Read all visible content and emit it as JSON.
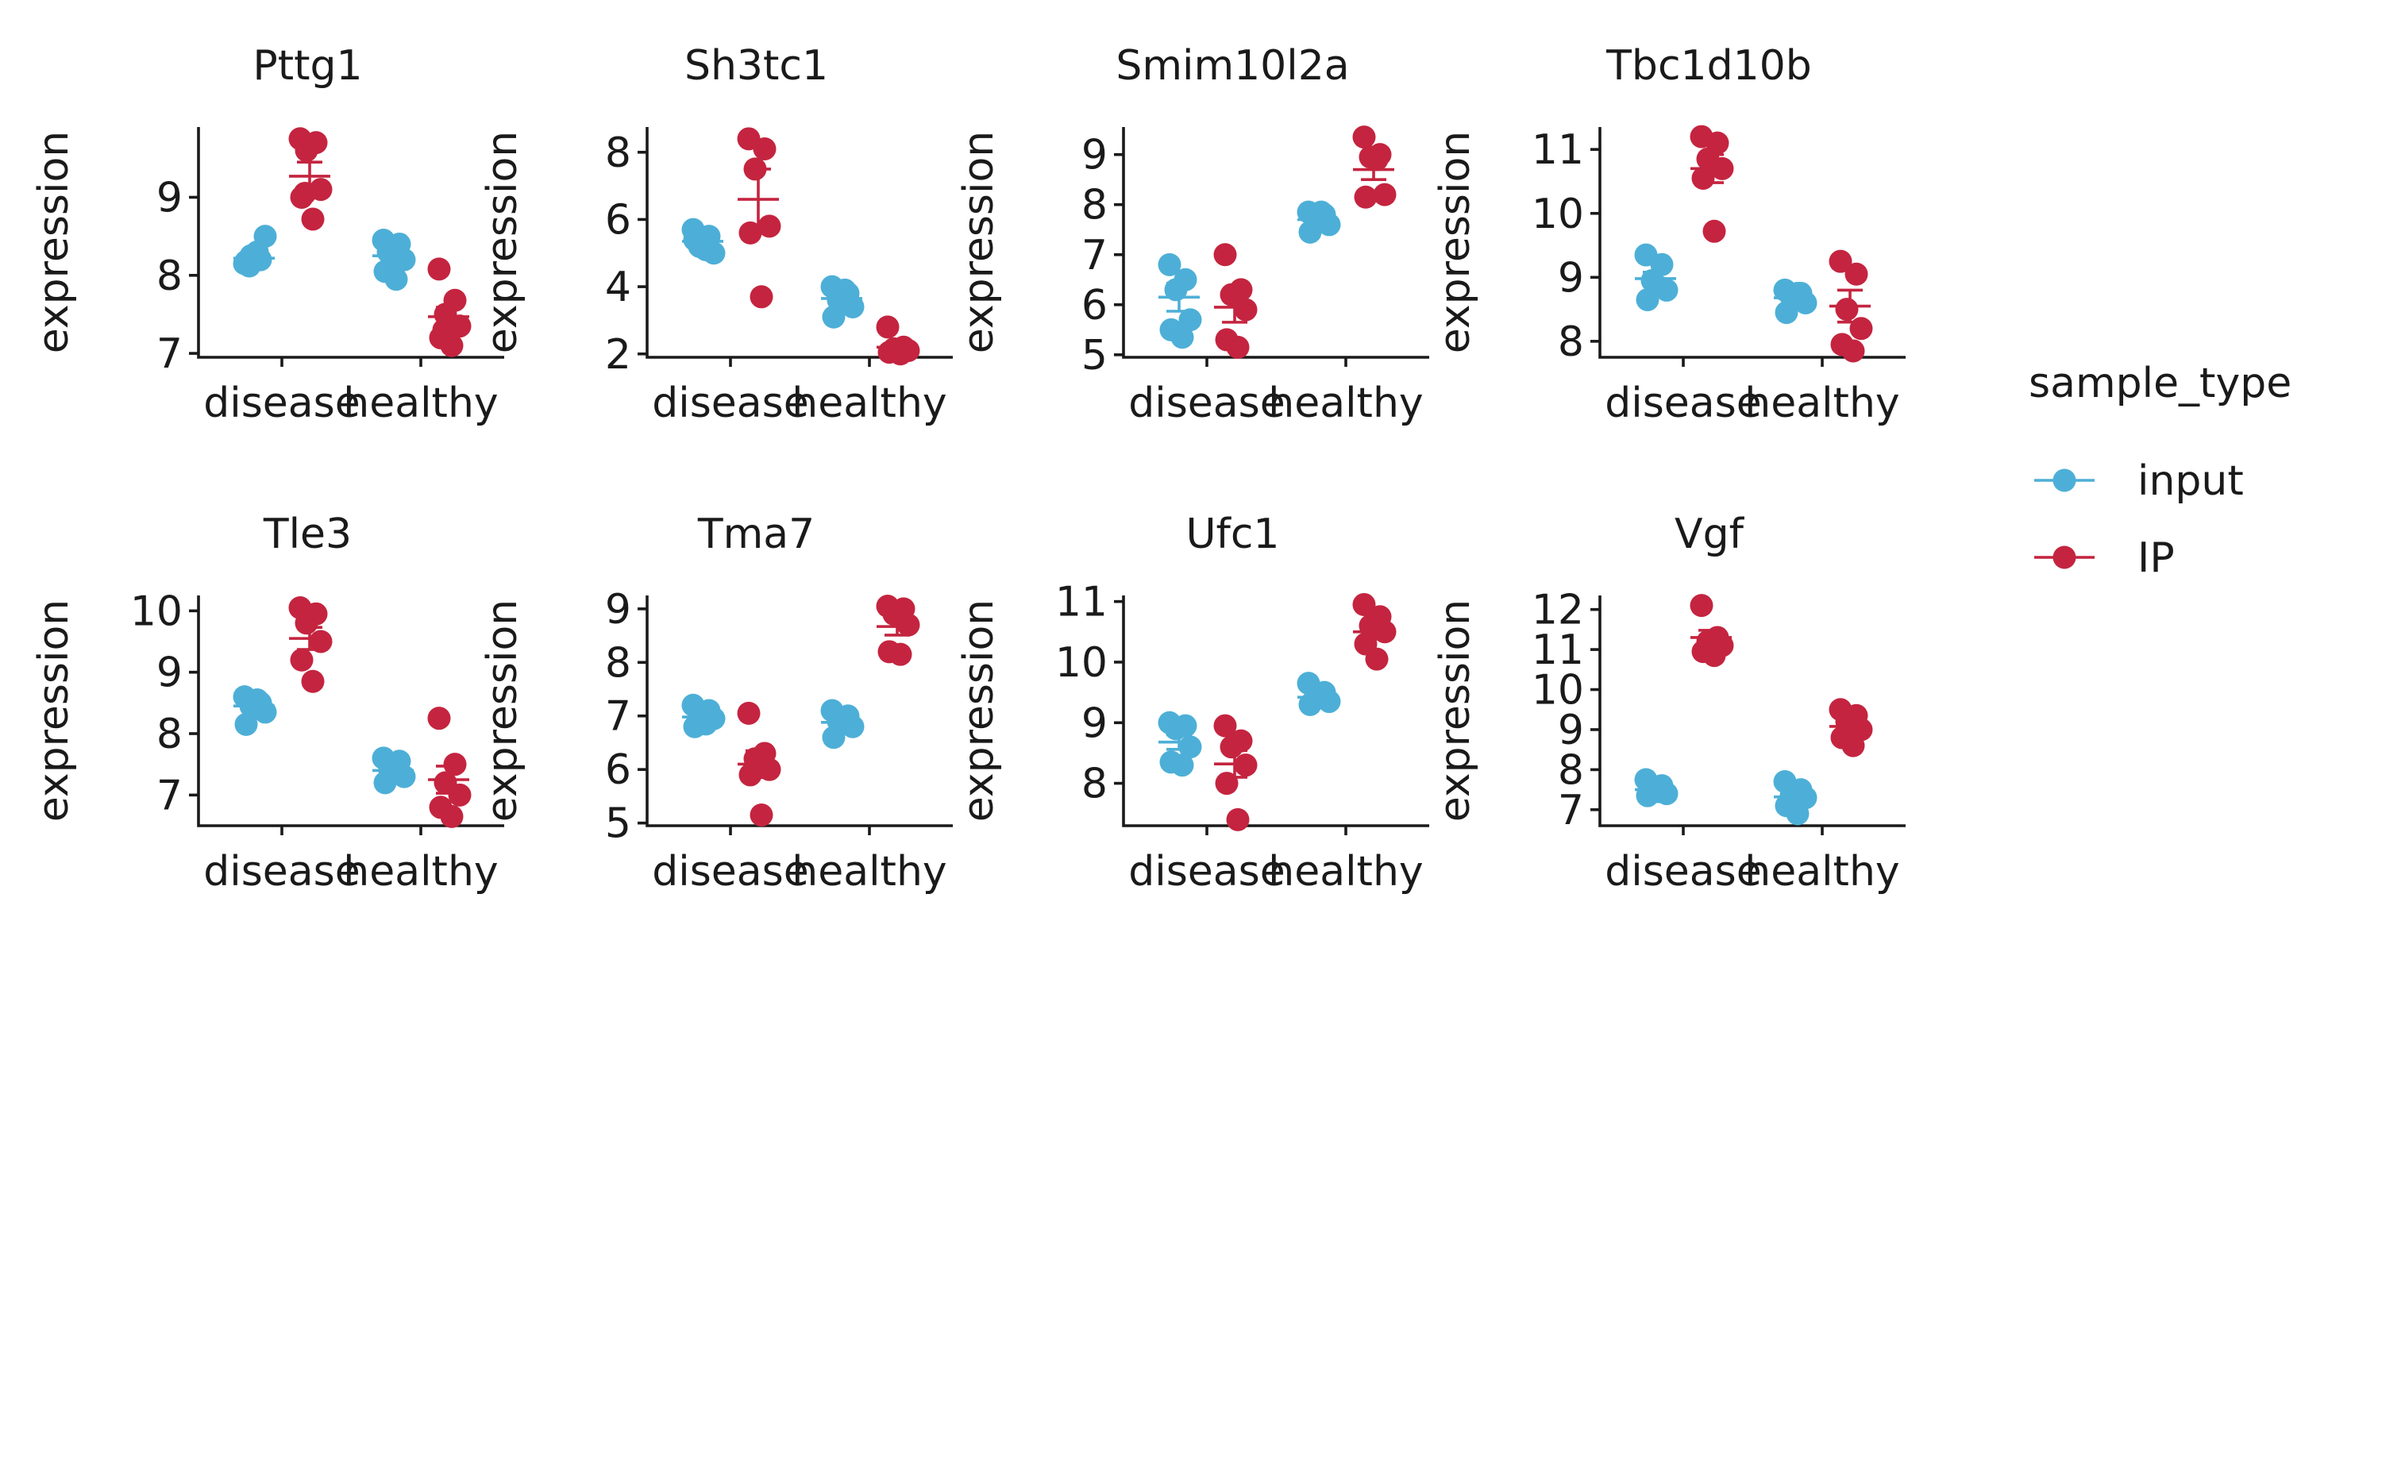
{
  "colors": {
    "input": "#4dafd7",
    "IP": "#c4243f",
    "axis": "#1a1a1a",
    "background": "#ffffff"
  },
  "legend": {
    "title": "sample_type",
    "entries": [
      {
        "name": "input",
        "color": "#4dafd7"
      },
      {
        "name": "IP",
        "color": "#c4243f"
      }
    ],
    "position": "right"
  },
  "chart_data": {
    "type": "scatter",
    "layout": "faceted 2 rows x 4 columns",
    "categories": [
      "disease",
      "healthy"
    ],
    "ylabel": "expression",
    "xlabel": "",
    "series_names": [
      "input",
      "IP"
    ],
    "summary": "mean with standard error bars per group",
    "panels": [
      {
        "title": "Pttg1",
        "ylim": [
          6.95,
          9.9
        ],
        "yticks": [
          7,
          8,
          9
        ],
        "groups": [
          {
            "category": "disease",
            "series": "input",
            "points": [
              8.15,
              8.2,
              8.25,
              8.5,
              8.18,
              8.3,
              8.12
            ],
            "mean": 8.22,
            "se": 0.04
          },
          {
            "category": "disease",
            "series": "IP",
            "points": [
              9.75,
              9.7,
              9.6,
              9.1,
              9.0,
              8.72,
              9.05
            ],
            "mean": 9.27,
            "se": 0.18
          },
          {
            "category": "healthy",
            "series": "input",
            "points": [
              8.45,
              8.4,
              8.35,
              8.2,
              8.05,
              7.95,
              8.3
            ],
            "mean": 8.25,
            "se": 0.08
          },
          {
            "category": "healthy",
            "series": "IP",
            "points": [
              8.08,
              7.68,
              7.5,
              7.35,
              7.2,
              7.1,
              7.3
            ],
            "mean": 7.47,
            "se": 0.12
          }
        ]
      },
      {
        "title": "Sh3tc1",
        "ylim": [
          1.9,
          8.75
        ],
        "yticks": [
          2,
          4,
          6,
          8
        ],
        "groups": [
          {
            "category": "disease",
            "series": "input",
            "points": [
              5.7,
              5.5,
              5.2,
              5.0,
              5.4,
              5.1
            ],
            "mean": 5.35,
            "se": 0.12
          },
          {
            "category": "disease",
            "series": "IP",
            "points": [
              8.4,
              8.1,
              7.5,
              5.8,
              5.6,
              3.7
            ],
            "mean": 6.6,
            "se": 0.9
          },
          {
            "category": "healthy",
            "series": "input",
            "points": [
              4.0,
              3.8,
              3.6,
              3.4,
              3.1,
              3.9
            ],
            "mean": 3.65,
            "se": 0.15
          },
          {
            "category": "healthy",
            "series": "IP",
            "points": [
              2.8,
              2.2,
              2.15,
              2.1,
              2.05,
              2.0
            ],
            "mean": 2.2,
            "se": 0.12
          }
        ]
      },
      {
        "title": "Smim10l2a",
        "ylim": [
          4.95,
          9.55
        ],
        "yticks": [
          5,
          6,
          7,
          8,
          9
        ],
        "groups": [
          {
            "category": "disease",
            "series": "input",
            "points": [
              6.8,
              6.5,
              6.3,
              5.7,
              5.5,
              5.35
            ],
            "mean": 6.15,
            "se": 0.28
          },
          {
            "category": "disease",
            "series": "IP",
            "points": [
              7.0,
              6.3,
              6.2,
              5.9,
              5.3,
              5.15
            ],
            "mean": 5.95,
            "se": 0.3
          },
          {
            "category": "healthy",
            "series": "input",
            "points": [
              7.85,
              7.8,
              7.7,
              7.6,
              7.45,
              7.85
            ],
            "mean": 7.7,
            "se": 0.07
          },
          {
            "category": "healthy",
            "series": "IP",
            "points": [
              9.35,
              9.0,
              8.95,
              8.2,
              8.15,
              8.9
            ],
            "mean": 8.7,
            "se": 0.2
          }
        ]
      },
      {
        "title": "Tbc1d10b",
        "ylim": [
          7.75,
          11.35
        ],
        "yticks": [
          8,
          9,
          10,
          11
        ],
        "groups": [
          {
            "category": "disease",
            "series": "input",
            "points": [
              9.35,
              9.2,
              8.95,
              8.8,
              8.65,
              8.85
            ],
            "mean": 8.98,
            "se": 0.1
          },
          {
            "category": "disease",
            "series": "IP",
            "points": [
              11.2,
              11.1,
              10.85,
              10.7,
              10.55,
              9.72
            ],
            "mean": 10.7,
            "se": 0.22
          },
          {
            "category": "healthy",
            "series": "input",
            "points": [
              8.8,
              8.75,
              8.7,
              8.6,
              8.45,
              8.75
            ],
            "mean": 8.68,
            "se": 0.05
          },
          {
            "category": "healthy",
            "series": "IP",
            "points": [
              9.25,
              9.05,
              8.5,
              8.2,
              7.95,
              7.85
            ],
            "mean": 8.55,
            "se": 0.25
          }
        ]
      },
      {
        "title": "Tle3",
        "ylim": [
          6.5,
          10.25
        ],
        "yticks": [
          7,
          8,
          9,
          10
        ],
        "groups": [
          {
            "category": "disease",
            "series": "input",
            "points": [
              8.6,
              8.5,
              8.45,
              8.35,
              8.15,
              8.55
            ],
            "mean": 8.45,
            "se": 0.06
          },
          {
            "category": "disease",
            "series": "IP",
            "points": [
              10.05,
              9.95,
              9.8,
              9.5,
              9.2,
              8.85
            ],
            "mean": 9.55,
            "se": 0.18
          },
          {
            "category": "healthy",
            "series": "input",
            "points": [
              7.6,
              7.55,
              7.4,
              7.3,
              7.2,
              7.5
            ],
            "mean": 7.4,
            "se": 0.07
          },
          {
            "category": "healthy",
            "series": "IP",
            "points": [
              8.25,
              7.5,
              7.2,
              7.0,
              6.8,
              6.65
            ],
            "mean": 7.25,
            "se": 0.22
          }
        ]
      },
      {
        "title": "Tma7",
        "ylim": [
          4.95,
          9.25
        ],
        "yticks": [
          5,
          6,
          7,
          8,
          9
        ],
        "groups": [
          {
            "category": "disease",
            "series": "input",
            "points": [
              7.2,
              7.1,
              7.0,
              6.95,
              6.8,
              6.85
            ],
            "mean": 6.98,
            "se": 0.06
          },
          {
            "category": "disease",
            "series": "IP",
            "points": [
              7.05,
              6.3,
              6.2,
              6.0,
              5.9,
              5.15
            ],
            "mean": 6.1,
            "se": 0.25
          },
          {
            "category": "healthy",
            "series": "input",
            "points": [
              7.1,
              7.0,
              6.9,
              6.8,
              6.6,
              6.95
            ],
            "mean": 6.88,
            "se": 0.07
          },
          {
            "category": "healthy",
            "series": "IP",
            "points": [
              9.05,
              9.0,
              8.9,
              8.7,
              8.2,
              8.15
            ],
            "mean": 8.67,
            "se": 0.16
          }
        ]
      },
      {
        "title": "Ufc1",
        "ylim": [
          7.3,
          11.1
        ],
        "yticks": [
          8,
          9,
          10,
          11
        ],
        "groups": [
          {
            "category": "disease",
            "series": "input",
            "points": [
              9.0,
              8.95,
              8.9,
              8.6,
              8.35,
              8.3
            ],
            "mean": 8.68,
            "se": 0.12
          },
          {
            "category": "disease",
            "series": "IP",
            "points": [
              8.95,
              8.7,
              8.6,
              8.3,
              8.0,
              7.4
            ],
            "mean": 8.32,
            "se": 0.22
          },
          {
            "category": "healthy",
            "series": "input",
            "points": [
              9.65,
              9.5,
              9.4,
              9.35,
              9.3,
              9.45
            ],
            "mean": 9.42,
            "se": 0.05
          },
          {
            "category": "healthy",
            "series": "IP",
            "points": [
              10.95,
              10.75,
              10.6,
              10.5,
              10.3,
              10.05
            ],
            "mean": 10.5,
            "se": 0.12
          }
        ]
      },
      {
        "title": "Vgf",
        "ylim": [
          6.6,
          12.35
        ],
        "yticks": [
          7,
          8,
          9,
          10,
          11,
          12
        ],
        "groups": [
          {
            "category": "disease",
            "series": "input",
            "points": [
              7.75,
              7.6,
              7.5,
              7.4,
              7.35,
              7.45
            ],
            "mean": 7.5,
            "se": 0.06
          },
          {
            "category": "disease",
            "series": "IP",
            "points": [
              12.1,
              11.3,
              11.2,
              11.1,
              10.95,
              10.85
            ],
            "mean": 11.3,
            "se": 0.18
          },
          {
            "category": "healthy",
            "series": "input",
            "points": [
              7.7,
              7.5,
              7.35,
              7.3,
              7.1,
              6.9
            ],
            "mean": 7.32,
            "se": 0.11
          },
          {
            "category": "healthy",
            "series": "IP",
            "points": [
              9.5,
              9.35,
              9.2,
              9.0,
              8.8,
              8.6
            ],
            "mean": 9.08,
            "se": 0.14
          }
        ]
      }
    ]
  }
}
